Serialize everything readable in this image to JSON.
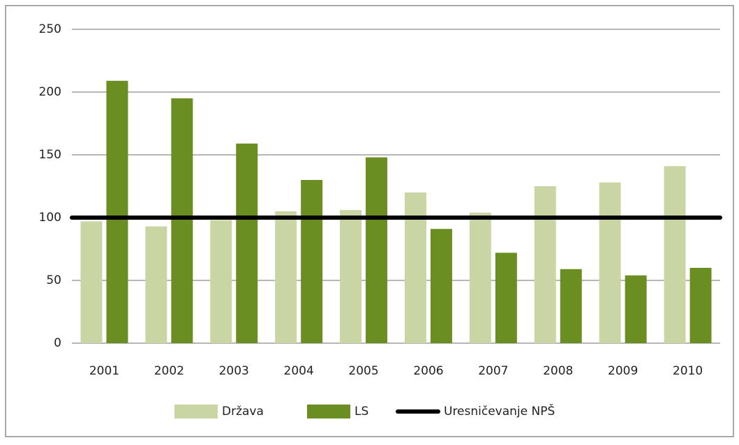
{
  "chart_data": {
    "type": "bar",
    "categories": [
      "2001",
      "2002",
      "2003",
      "2004",
      "2005",
      "2006",
      "2007",
      "2008",
      "2009",
      "2010"
    ],
    "series": [
      {
        "name": "Država",
        "color": "#c9d5a3",
        "values": [
          97,
          93,
          98,
          105,
          106,
          120,
          104,
          125,
          128,
          141
        ]
      },
      {
        "name": "LS",
        "color": "#6b8e23",
        "values": [
          209,
          195,
          159,
          130,
          148,
          91,
          72,
          59,
          54,
          60
        ]
      },
      {
        "name": "Uresničevanje NPŠ",
        "color": "#000000",
        "type": "line",
        "values": [
          100,
          100,
          100,
          100,
          100,
          100,
          100,
          100,
          100,
          100
        ]
      }
    ],
    "ylim": [
      0,
      250
    ],
    "yticks": [
      0,
      50,
      100,
      150,
      200,
      250
    ],
    "grid": true,
    "legend": "bottom"
  }
}
